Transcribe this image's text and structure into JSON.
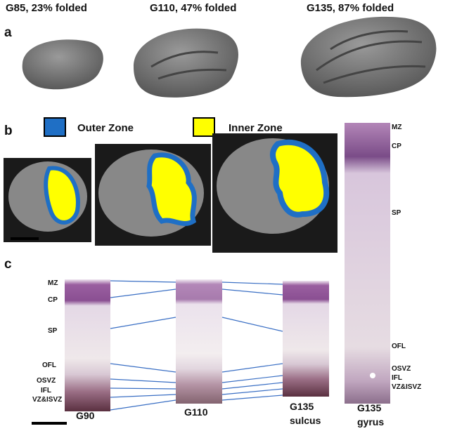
{
  "panel_a": {
    "label": "a",
    "titles": [
      "G85, 23% folded",
      "G110, 47% folded",
      "G135, 87% folded"
    ]
  },
  "panel_b": {
    "label": "b",
    "legend": [
      {
        "label": "Outer Zone",
        "color": "#1f6fc5"
      },
      {
        "label": "Inner Zone",
        "color": "#ffff00"
      }
    ]
  },
  "panel_c": {
    "label": "c",
    "layers": [
      "MZ",
      "CP",
      "SP",
      "OFL",
      "OSVZ",
      "IFL",
      "VZ&ISVZ"
    ],
    "columns": [
      [
        "G90"
      ],
      [
        "G110"
      ],
      [
        "G135",
        "sulcus"
      ]
    ]
  },
  "gyrus": {
    "layers": [
      "MZ",
      "CP",
      "SP",
      "OFL",
      "OSVZ",
      "IFL",
      "VZ&ISVZ"
    ],
    "title": [
      "G135",
      "gyrus"
    ]
  }
}
